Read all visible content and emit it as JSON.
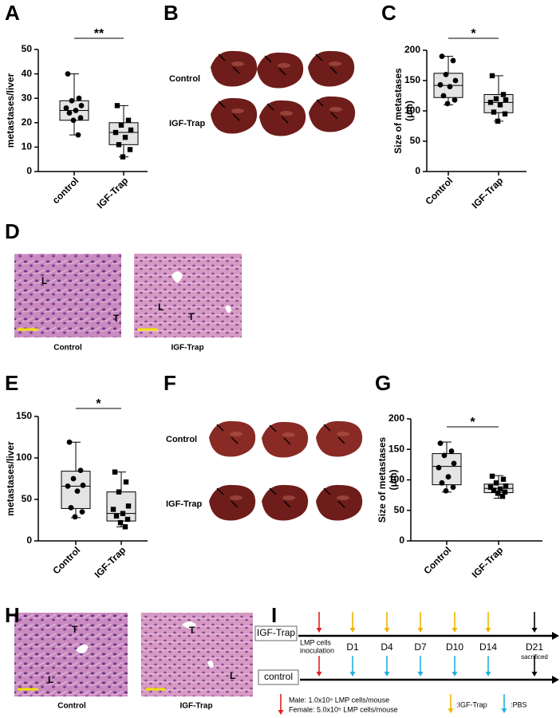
{
  "chart_data": [
    {
      "type": "box",
      "ylabel": [
        "metastases/liver"
      ],
      "categories": [
        "control",
        "IGF-Trap"
      ],
      "ylim": [
        0,
        50
      ],
      "yticks": [
        0,
        10,
        20,
        30,
        40,
        50
      ],
      "markers": [
        "circle",
        "square"
      ],
      "significance": "**",
      "boxes": [
        {
          "min": 15,
          "q1": 21,
          "median": 25,
          "q3": 29,
          "max": 40,
          "points": [
            40,
            30,
            29,
            27,
            26,
            25,
            24,
            22,
            21,
            15
          ]
        },
        {
          "min": 6,
          "q1": 11,
          "median": 16,
          "q3": 20,
          "max": 27,
          "points": [
            27,
            21,
            19,
            17,
            16,
            14,
            11,
            9,
            6
          ]
        }
      ]
    },
    {
      "type": "box",
      "ylabel": [
        "Size of metastases",
        "(μm)"
      ],
      "categories": [
        "Control",
        "IGF-Trap"
      ],
      "ylim": [
        0,
        200
      ],
      "yticks": [
        0,
        50,
        100,
        150,
        200
      ],
      "markers": [
        "circle",
        "square"
      ],
      "significance": "*",
      "boxes": [
        {
          "min": 110,
          "q1": 122,
          "median": 142,
          "q3": 162,
          "max": 190,
          "points": [
            190,
            183,
            160,
            150,
            143,
            140,
            125,
            118,
            112
          ]
        },
        {
          "min": 83,
          "q1": 97,
          "median": 114,
          "q3": 127,
          "max": 158,
          "points": [
            158,
            127,
            120,
            118,
            114,
            110,
            98,
            95,
            83
          ]
        }
      ]
    },
    {
      "type": "box",
      "ylabel": [
        "metastases/liver"
      ],
      "categories": [
        "Control",
        "IGF-Trap"
      ],
      "ylim": [
        0,
        150
      ],
      "yticks": [
        0,
        50,
        100,
        150
      ],
      "markers": [
        "circle",
        "square"
      ],
      "significance": "*",
      "boxes": [
        {
          "min": 28,
          "q1": 39,
          "median": 66,
          "q3": 84,
          "max": 119,
          "points": [
            119,
            85,
            75,
            67,
            66,
            60,
            40,
            35,
            29
          ]
        },
        {
          "min": 17,
          "q1": 24,
          "median": 33,
          "q3": 59,
          "max": 83,
          "points": [
            83,
            71,
            59,
            42,
            38,
            33,
            30,
            26,
            22,
            17
          ]
        }
      ]
    },
    {
      "type": "box",
      "ylabel": [
        "Size of metastases",
        "(μm)"
      ],
      "categories": [
        "Control",
        "IGF-Trap"
      ],
      "ylim": [
        0,
        200
      ],
      "yticks": [
        0,
        50,
        100,
        150,
        200
      ],
      "markers": [
        "circle",
        "square"
      ],
      "significance": "*",
      "boxes": [
        {
          "min": 80,
          "q1": 92,
          "median": 122,
          "q3": 143,
          "max": 162,
          "points": [
            160,
            147,
            140,
            127,
            120,
            105,
            95,
            88,
            82
          ]
        },
        {
          "min": 70,
          "q1": 79,
          "median": 86,
          "q3": 93,
          "max": 107,
          "points": [
            106,
            101,
            95,
            90,
            88,
            85,
            83,
            80,
            78,
            73
          ]
        }
      ]
    }
  ],
  "figure": {
    "panel_letters": [
      "A",
      "B",
      "C",
      "D",
      "E",
      "F",
      "G",
      "H",
      "I"
    ],
    "liver_rows_B": [
      "Control",
      "IGF-Trap"
    ],
    "liver_rows_F": [
      "Control",
      "IGF-Trap"
    ],
    "histology_D": {
      "captions": [
        "Control",
        "IGF-Trap"
      ],
      "marks": [
        "L",
        "T",
        "L",
        "T"
      ]
    },
    "histology_H": {
      "captions": [
        "Control",
        "IGF-Trap"
      ],
      "marks": [
        "T",
        "L",
        "T",
        "L"
      ]
    },
    "timeline": {
      "groups": [
        "IGF-Trap",
        "control"
      ],
      "start_label": [
        "LMP cells",
        "inoculation"
      ],
      "days": [
        "D1",
        "D4",
        "D7",
        "D10",
        "D14"
      ],
      "end_label": "D21",
      "end_note": "sacrificed",
      "legend": {
        "cells": [
          "Male: 1.0x10⁵ LMP cells/mouse",
          "Female: 5.0x10⁵ LMP cells/mouse"
        ],
        "treatment": ":IGF-Trap",
        "vehicle": ":PBS"
      },
      "colors": {
        "cells": "#e02020",
        "treatment": "#f0b400",
        "vehicle": "#22b0e0",
        "end": "#000000"
      }
    }
  }
}
